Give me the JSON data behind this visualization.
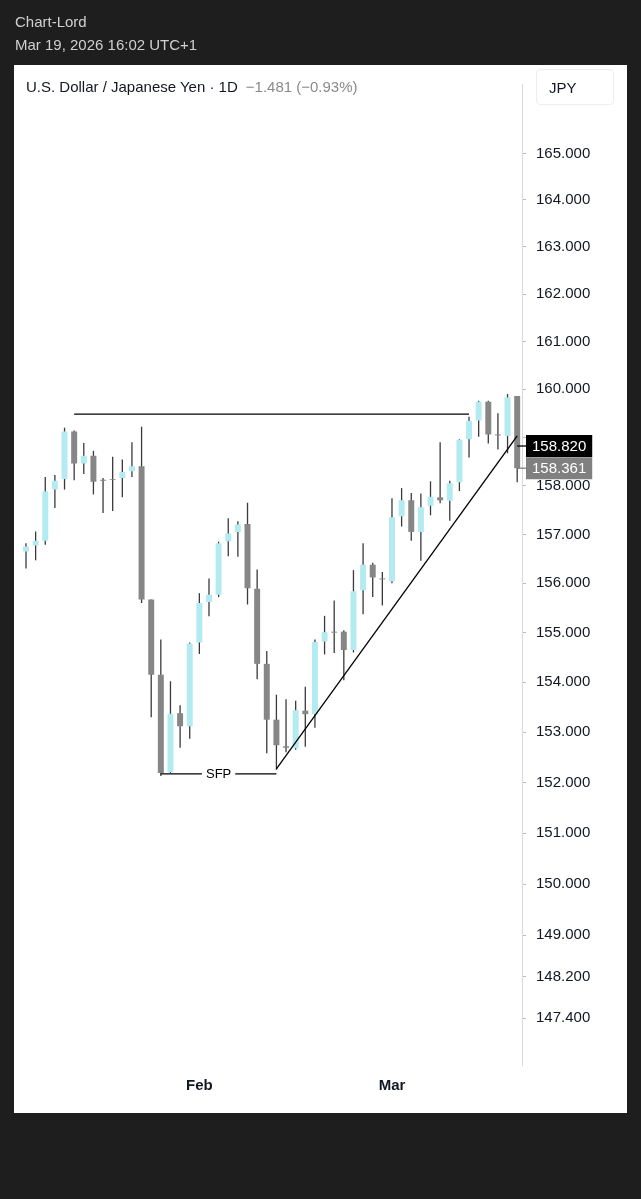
{
  "chart_data": {
    "type": "candlestick",
    "title": "U.S. Dollar / Japanese Yen · 1D",
    "subtitle": "−1.481 (−0.93%)",
    "ylabel": "JPY",
    "annotations": [
      "Chart-Lord",
      "Mar 19, 2026 16:02 UTC+1"
    ],
    "categories": [
      null,
      null,
      null,
      null,
      null,
      null,
      null,
      null,
      null,
      null,
      null,
      null,
      null,
      null,
      null,
      null,
      null,
      null,
      "Feb",
      null,
      null,
      null,
      null,
      null,
      null,
      null,
      null,
      null,
      null,
      null,
      null,
      null,
      null,
      null,
      null,
      null,
      null,
      null,
      "Mar",
      null,
      null,
      null,
      null,
      null,
      null,
      null,
      null,
      null,
      null,
      null,
      null,
      null
    ],
    "ohlc": [
      [
        156.65,
        156.82,
        156.3,
        156.75
      ],
      [
        156.77,
        157.06,
        156.47,
        156.87
      ],
      [
        156.87,
        158.18,
        156.79,
        157.88
      ],
      [
        157.92,
        158.22,
        157.54,
        158.1
      ],
      [
        158.14,
        159.2,
        157.92,
        159.12
      ],
      [
        159.12,
        159.14,
        158.11,
        158.46
      ],
      [
        158.46,
        158.88,
        158.24,
        158.62
      ],
      [
        158.62,
        158.72,
        157.82,
        158.08
      ],
      [
        158.12,
        158.16,
        157.44,
        158.1
      ],
      [
        158.14,
        158.6,
        157.48,
        158.12
      ],
      [
        158.16,
        158.54,
        157.76,
        158.28
      ],
      [
        158.3,
        158.9,
        158.18,
        158.4
      ],
      [
        158.4,
        159.22,
        155.6,
        155.67
      ],
      [
        155.67,
        155.67,
        153.3,
        154.15
      ],
      [
        154.15,
        154.86,
        152.13,
        152.19
      ],
      [
        152.21,
        154.02,
        152.19,
        153.37
      ],
      [
        153.38,
        153.54,
        152.69,
        153.12
      ],
      [
        153.12,
        154.8,
        152.87,
        154.78
      ],
      [
        154.8,
        155.8,
        154.57,
        155.6
      ],
      [
        155.62,
        156.1,
        155.33,
        155.77
      ],
      [
        155.77,
        156.85,
        155.72,
        156.82
      ],
      [
        156.86,
        157.33,
        156.55,
        157.02
      ],
      [
        157.05,
        157.27,
        156.54,
        157.2
      ],
      [
        157.21,
        157.65,
        155.57,
        155.9
      ],
      [
        155.89,
        156.28,
        154.06,
        154.37
      ],
      [
        154.37,
        154.63,
        152.58,
        153.25
      ],
      [
        153.25,
        153.75,
        152.25,
        152.74
      ],
      [
        152.72,
        153.66,
        152.6,
        152.69
      ],
      [
        152.68,
        153.63,
        152.65,
        153.44
      ],
      [
        153.43,
        153.91,
        152.71,
        153.36
      ],
      [
        153.36,
        154.86,
        153.09,
        154.81
      ],
      [
        154.82,
        155.34,
        154.56,
        155.01
      ],
      [
        155.02,
        155.65,
        154.59,
        155.0
      ],
      [
        155.02,
        155.05,
        154.04,
        154.65
      ],
      [
        154.65,
        156.27,
        154.6,
        155.84
      ],
      [
        155.86,
        156.82,
        155.37,
        156.38
      ],
      [
        156.38,
        156.42,
        155.72,
        156.12
      ],
      [
        156.1,
        156.23,
        155.55,
        156.08
      ],
      [
        156.04,
        157.74,
        156.0,
        157.35
      ],
      [
        157.37,
        157.95,
        157.16,
        157.7
      ],
      [
        157.7,
        157.85,
        156.87,
        157.05
      ],
      [
        157.05,
        157.84,
        156.46,
        157.56
      ],
      [
        157.59,
        158.09,
        157.39,
        157.77
      ],
      [
        157.76,
        158.9,
        157.64,
        157.7
      ],
      [
        157.69,
        158.1,
        157.28,
        158.05
      ],
      [
        158.07,
        158.96,
        157.89,
        158.95
      ],
      [
        158.96,
        159.43,
        158.58,
        159.34
      ],
      [
        159.35,
        159.76,
        159.01,
        159.74
      ],
      [
        159.74,
        159.76,
        158.87,
        159.06
      ],
      [
        159.06,
        159.5,
        158.75,
        159.04
      ],
      [
        159.03,
        159.9,
        158.67,
        159.83
      ],
      [
        159.86,
        159.86,
        158.07,
        158.361
      ]
    ],
    "colors": [
      "#b2ebf2",
      "#b2ebf2",
      "#b2ebf2",
      "#b2ebf2",
      "#b2ebf2",
      "#868686",
      "#b2ebf2",
      "#868686",
      "#868686",
      "#868686",
      "#b2ebf2",
      "#b2ebf2",
      "#868686",
      "#868686",
      "#868686",
      "#b2ebf2",
      "#868686",
      "#b2ebf2",
      "#b2ebf2",
      "#b2ebf2",
      "#b2ebf2",
      "#b2ebf2",
      "#b2ebf2",
      "#868686",
      "#868686",
      "#868686",
      "#868686",
      "#868686",
      "#b2ebf2",
      "#868686",
      "#b2ebf2",
      "#b2ebf2",
      "#868686",
      "#868686",
      "#b2ebf2",
      "#b2ebf2",
      "#868686",
      "#868686",
      "#b2ebf2",
      "#b2ebf2",
      "#868686",
      "#b2ebf2",
      "#b2ebf2",
      "#868686",
      "#b2ebf2",
      "#b2ebf2",
      "#b2ebf2",
      "#b2ebf2",
      "#868686",
      "#868686",
      "#b2ebf2",
      "#868686"
    ],
    "series": [
      {
        "type": "line",
        "color": "#000000",
        "values": [
          null,
          null,
          null,
          null,
          null,
          159.48,
          null,
          null,
          null,
          null,
          null,
          null,
          null,
          null,
          null,
          null,
          null,
          null,
          null,
          null,
          null,
          null,
          null,
          null,
          null,
          null,
          null,
          null,
          null,
          null,
          null,
          null,
          null,
          null,
          null,
          null,
          null,
          null,
          null,
          null,
          null,
          null,
          null,
          null,
          null,
          null,
          159.48,
          null,
          null,
          null,
          null,
          null
        ]
      },
      {
        "type": "line",
        "name": "SFP",
        "color": "#000000",
        "values": [
          null,
          null,
          null,
          null,
          null,
          null,
          null,
          null,
          null,
          null,
          null,
          null,
          null,
          null,
          152.17,
          null,
          null,
          null,
          null,
          null,
          null,
          null,
          null,
          null,
          null,
          null,
          152.17,
          null,
          null,
          null,
          null,
          null,
          null,
          null,
          null,
          null,
          null,
          null,
          null,
          null,
          null,
          null,
          null,
          null,
          null,
          null,
          null,
          null,
          null,
          null,
          null,
          null
        ]
      },
      {
        "type": "line",
        "color": "#000000",
        "values": [
          null,
          null,
          null,
          null,
          null,
          null,
          null,
          null,
          null,
          null,
          null,
          null,
          null,
          null,
          null,
          null,
          null,
          null,
          null,
          null,
          null,
          null,
          null,
          null,
          null,
          null,
          152.27,
          null,
          null,
          null,
          null,
          null,
          null,
          null,
          null,
          null,
          null,
          null,
          null,
          null,
          null,
          null,
          null,
          null,
          null,
          null,
          null,
          null,
          null,
          null,
          null,
          159.03
        ]
      }
    ],
    "ref_lines": [
      {
        "axis": "y",
        "value": 158.82,
        "label": "158.820",
        "color": "#000000"
      },
      {
        "axis": "y",
        "value": 158.361,
        "label": "158.361",
        "color": "#808080"
      }
    ],
    "log": true,
    "ylim": [
      146.5,
      166.5
    ],
    "yticks": [
      {
        "value": 165,
        "label": "165.000"
      },
      {
        "value": 164,
        "label": "164.000"
      },
      {
        "value": 163,
        "label": "163.000"
      },
      {
        "value": 162,
        "label": "162.000"
      },
      {
        "value": 161,
        "label": "161.000"
      },
      {
        "value": 160,
        "label": "160.000"
      },
      {
        "value": 159,
        "label": null
      },
      {
        "value": 158,
        "label": "158.000"
      },
      {
        "value": 157,
        "label": "157.000"
      },
      {
        "value": 156,
        "label": "156.000"
      },
      {
        "value": 155,
        "label": "155.000"
      },
      {
        "value": 154,
        "label": "154.000"
      },
      {
        "value": 153,
        "label": "153.000"
      },
      {
        "value": 152,
        "label": "152.000"
      },
      {
        "value": 151,
        "label": "151.000"
      },
      {
        "value": 150,
        "label": "150.000"
      },
      {
        "value": 149,
        "label": "149.000"
      },
      {
        "value": 148.2,
        "label": "148.200"
      },
      {
        "value": 147.4,
        "label": "147.400"
      }
    ]
  }
}
